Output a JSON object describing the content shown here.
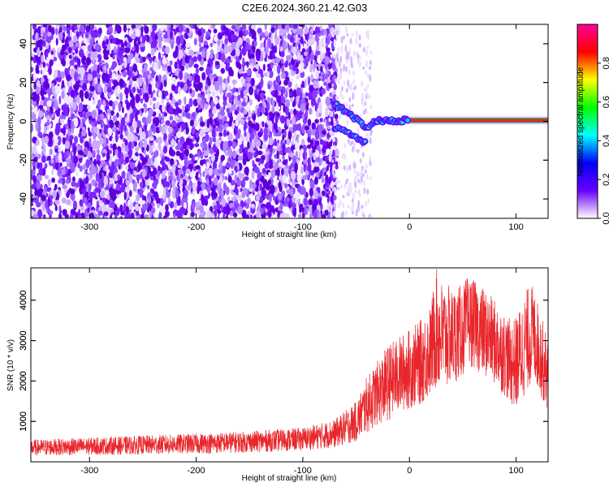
{
  "title": "C2E6.2024.360.21.42.G03",
  "chart_data": [
    {
      "type": "heatmap",
      "xlabel": "Height of straight line (km)",
      "ylabel": "Frequency (Hz)",
      "xlim": [
        -355,
        130
      ],
      "ylim": [
        -50,
        50
      ],
      "xticks": [
        -300,
        -200,
        -100,
        0,
        100
      ],
      "yticks": [
        -40,
        -20,
        0,
        20,
        40
      ],
      "signal_track": [
        {
          "x": -70,
          "y": 9
        },
        {
          "x": -60,
          "y": 5
        },
        {
          "x": -50,
          "y": 1
        },
        {
          "x": -40,
          "y": -3
        },
        {
          "x": -30,
          "y": 0.5
        },
        {
          "x": -20,
          "y": 0.5
        },
        {
          "x": -10,
          "y": 0.5
        },
        {
          "x": 0,
          "y": 0.5
        },
        {
          "x": 50,
          "y": 0.5
        },
        {
          "x": 130,
          "y": 0.5
        }
      ],
      "signal_track_lower": [
        {
          "x": -70,
          "y": -3
        },
        {
          "x": -60,
          "y": -5
        },
        {
          "x": -50,
          "y": -8
        },
        {
          "x": -40,
          "y": -12
        }
      ],
      "colorbar": {
        "label": "Normalized spectral amplitude",
        "range": [
          0,
          1
        ],
        "ticks": [
          0.0,
          0.2,
          0.4,
          0.6,
          0.8
        ],
        "tick_labels": [
          "0.0",
          "0.2",
          "0.4",
          "0.6",
          "0.8"
        ],
        "colors": [
          "#ffffff",
          "#6a00ff",
          "#0000ff",
          "#00ffff",
          "#00ff00",
          "#ffff00",
          "#ff0000",
          "#ff0099"
        ]
      }
    },
    {
      "type": "line",
      "xlabel": "Height of straight line (km)",
      "ylabel": "SNR (10 * v/v)",
      "xlim": [
        -355,
        130
      ],
      "ylim": [
        0,
        4800
      ],
      "xticks": [
        -300,
        -200,
        -100,
        0,
        100
      ],
      "yticks": [
        1000,
        2000,
        3000,
        4000
      ],
      "color": "#e8262b",
      "envelope": {
        "x": [
          -355,
          -300,
          -250,
          -200,
          -150,
          -100,
          -70,
          -50,
          -40,
          -30,
          -20,
          -10,
          0,
          10,
          20,
          25,
          30,
          40,
          50,
          55,
          60,
          70,
          80,
          90,
          95,
          100,
          110,
          115,
          120,
          130
        ],
        "low": [
          150,
          170,
          180,
          200,
          230,
          280,
          350,
          500,
          700,
          900,
          1000,
          1200,
          1300,
          1400,
          1600,
          1800,
          1700,
          1900,
          2100,
          2400,
          2300,
          2100,
          1900,
          1600,
          1400,
          1300,
          1700,
          2000,
          1800,
          1200
        ],
        "high": [
          550,
          600,
          650,
          700,
          760,
          850,
          1050,
          1500,
          2100,
          2500,
          2900,
          3100,
          3300,
          3500,
          3900,
          4800,
          4500,
          4300,
          4400,
          4600,
          4500,
          4300,
          4000,
          3700,
          3500,
          3600,
          4300,
          4400,
          4000,
          3000
        ]
      }
    }
  ]
}
